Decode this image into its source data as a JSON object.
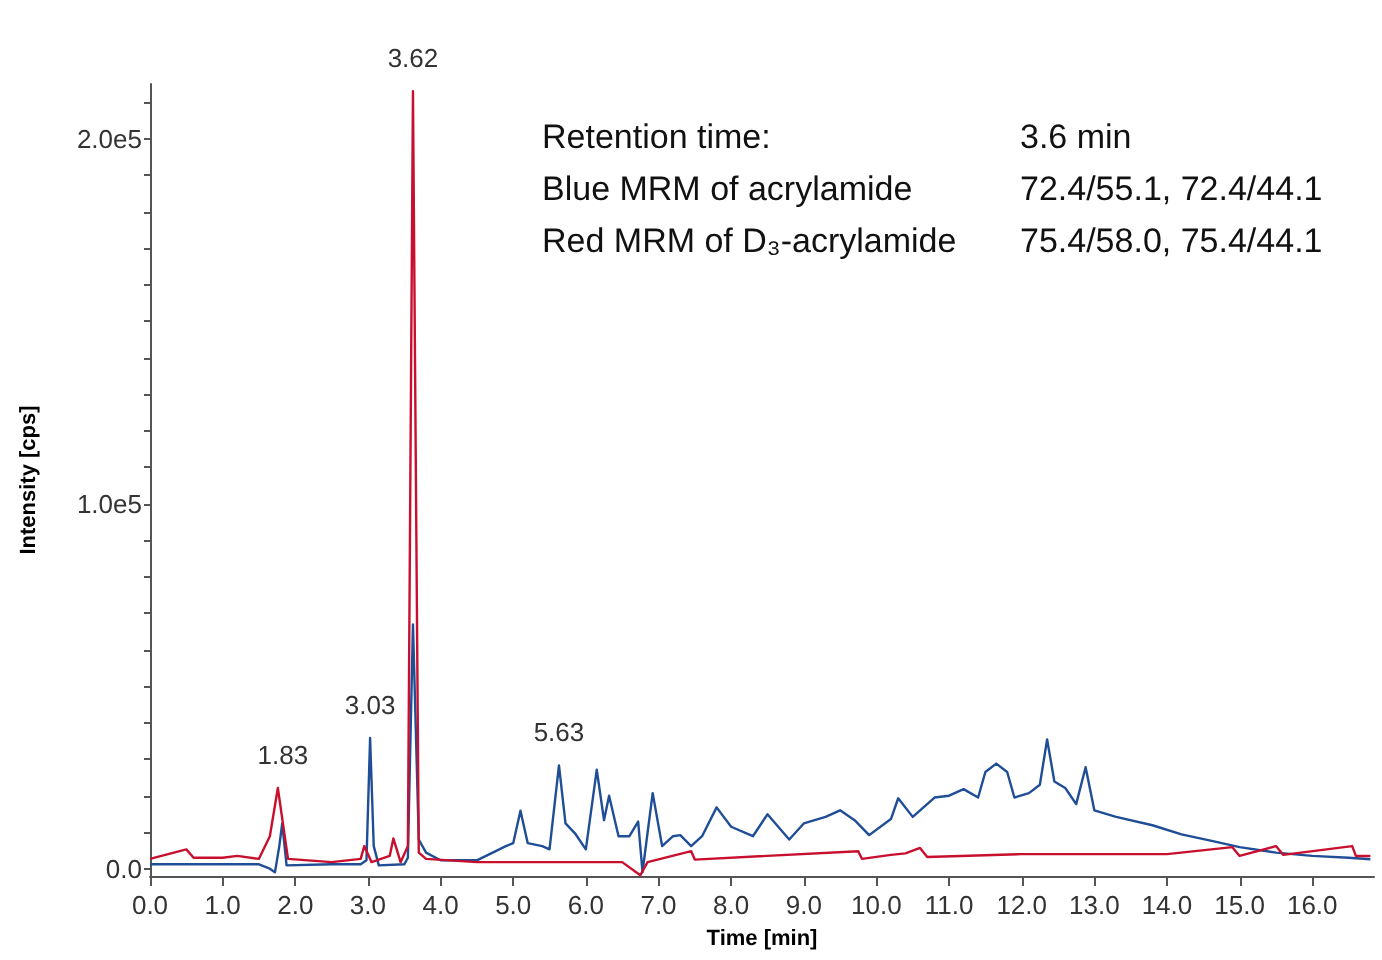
{
  "chart_data": {
    "type": "line",
    "xlabel": "Time [min]",
    "ylabel": "Intensity [cps]",
    "xlim": [
      0,
      16.85
    ],
    "ylim": [
      -2000,
      215000
    ],
    "xticks": [
      {
        "value": 0,
        "label": "0.0"
      },
      {
        "value": 1,
        "label": "1.0"
      },
      {
        "value": 2,
        "label": "2.0"
      },
      {
        "value": 3,
        "label": "3.0"
      },
      {
        "value": 4,
        "label": "4.0"
      },
      {
        "value": 5,
        "label": "5.0"
      },
      {
        "value": 6,
        "label": "6.0"
      },
      {
        "value": 7,
        "label": "7.0"
      },
      {
        "value": 8,
        "label": "8.0"
      },
      {
        "value": 9,
        "label": "9.0"
      },
      {
        "value": 10,
        "label": "10.0"
      },
      {
        "value": 11,
        "label": "11.0"
      },
      {
        "value": 12,
        "label": "12.0"
      },
      {
        "value": 13,
        "label": "13.0"
      },
      {
        "value": 14,
        "label": "14.0"
      },
      {
        "value": 15,
        "label": "15.0"
      },
      {
        "value": 16,
        "label": "16.0"
      }
    ],
    "yticks": [
      {
        "value": 0,
        "label": "0.0"
      },
      {
        "value": 10000,
        "label": null
      },
      {
        "value": 20000,
        "label": null
      },
      {
        "value": 30000,
        "label": null
      },
      {
        "value": 40000,
        "label": null
      },
      {
        "value": 50000,
        "label": null
      },
      {
        "value": 60000,
        "label": null
      },
      {
        "value": 70000,
        "label": null
      },
      {
        "value": 80000,
        "label": null
      },
      {
        "value": 90000,
        "label": null
      },
      {
        "value": 100000,
        "label": "1.0e5"
      },
      {
        "value": 110000,
        "label": null
      },
      {
        "value": 120000,
        "label": null
      },
      {
        "value": 130000,
        "label": null
      },
      {
        "value": 140000,
        "label": null
      },
      {
        "value": 150000,
        "label": null
      },
      {
        "value": 160000,
        "label": null
      },
      {
        "value": 170000,
        "label": null
      },
      {
        "value": 180000,
        "label": null
      },
      {
        "value": 190000,
        "label": null
      },
      {
        "value": 200000,
        "label": "2.0e5"
      },
      {
        "value": 210000,
        "label": null
      }
    ],
    "grid": false,
    "marker": "none",
    "line_style": "solid",
    "series": [
      {
        "color": "#1f4e96",
        "x": [
          0,
          1.5,
          1.65,
          1.72,
          1.78,
          1.82,
          1.88,
          2.5,
          2.9,
          2.98,
          3.03,
          3.08,
          3.15,
          3.5,
          3.55,
          3.62,
          3.7,
          3.8,
          4.0,
          4.5,
          4.9,
          5.0,
          5.1,
          5.2,
          5.4,
          5.5,
          5.63,
          5.72,
          5.85,
          6.0,
          6.15,
          6.25,
          6.32,
          6.45,
          6.6,
          6.72,
          6.78,
          6.92,
          7.05,
          7.2,
          7.3,
          7.45,
          7.6,
          7.8,
          8.0,
          8.3,
          8.5,
          8.8,
          9.0,
          9.3,
          9.5,
          9.7,
          9.9,
          10.2,
          10.3,
          10.5,
          10.8,
          11.0,
          11.2,
          11.4,
          11.5,
          11.65,
          11.8,
          11.9,
          12.1,
          12.25,
          12.35,
          12.45,
          12.6,
          12.75,
          12.88,
          13.0,
          13.3,
          13.8,
          14.2,
          14.6,
          15.0,
          15.5,
          16.0,
          16.5,
          16.8
        ],
        "values": [
          1200,
          1200,
          0,
          -1000,
          6200,
          12400,
          900,
          1200,
          1200,
          2300,
          35800,
          6200,
          900,
          1200,
          3000,
          66900,
          8000,
          4400,
          2300,
          2300,
          6200,
          7000,
          15900,
          7000,
          6200,
          5300,
          28300,
          12400,
          9700,
          5300,
          27100,
          13300,
          20000,
          8900,
          8900,
          12900,
          -900,
          20700,
          6200,
          8900,
          9200,
          6200,
          8900,
          16800,
          11500,
          8900,
          14900,
          8000,
          12400,
          14200,
          16000,
          13300,
          9200,
          13600,
          19300,
          14200,
          19500,
          20000,
          21800,
          19500,
          26500,
          28800,
          26500,
          19500,
          20700,
          23000,
          35400,
          23900,
          22100,
          17700,
          27800,
          16000,
          14200,
          11900,
          9400,
          7700,
          5900,
          4400,
          3500,
          3000,
          2600
        ]
      },
      {
        "color": "#c8102e",
        "x": [
          0,
          0.5,
          0.6,
          1.0,
          1.2,
          1.5,
          1.65,
          1.76,
          1.9,
          2.5,
          2.9,
          2.95,
          3.05,
          3.3,
          3.35,
          3.45,
          3.55,
          3.62,
          3.7,
          3.8,
          4.5,
          5.0,
          6.0,
          6.5,
          6.75,
          6.85,
          7.45,
          7.5,
          9.75,
          9.8,
          10.2,
          10.4,
          10.6,
          10.7,
          12.0,
          14.0,
          14.9,
          15.0,
          15.5,
          15.6,
          16.55,
          16.6,
          16.8
        ],
        "values": [
          2700,
          5300,
          3000,
          3000,
          3500,
          2700,
          8900,
          22100,
          2700,
          1800,
          2700,
          6200,
          1800,
          3500,
          8300,
          1800,
          6200,
          213000,
          4400,
          2700,
          1800,
          1800,
          1800,
          1800,
          -1800,
          1800,
          4800,
          2500,
          4800,
          2700,
          3800,
          4200,
          5700,
          3200,
          4000,
          4000,
          5900,
          3500,
          6200,
          3800,
          6200,
          3500,
          3500
        ]
      }
    ],
    "annotations": [
      {
        "text": "1.83",
        "x": 1.83,
        "y": 22100
      },
      {
        "text": "3.03",
        "x": 3.03,
        "y": 35800
      },
      {
        "text": "3.62",
        "x": 3.62,
        "y": 213000
      },
      {
        "text": "5.63",
        "x": 5.63,
        "y": 28300
      },
      "Retention time:",
      "3.6 min",
      "Blue MRM of acrylamide",
      "72.4/55.1, 72.4/44.1",
      "Red MRM of D₃-acrylamide",
      "75.4/58.0, 75.4/44.1"
    ]
  }
}
